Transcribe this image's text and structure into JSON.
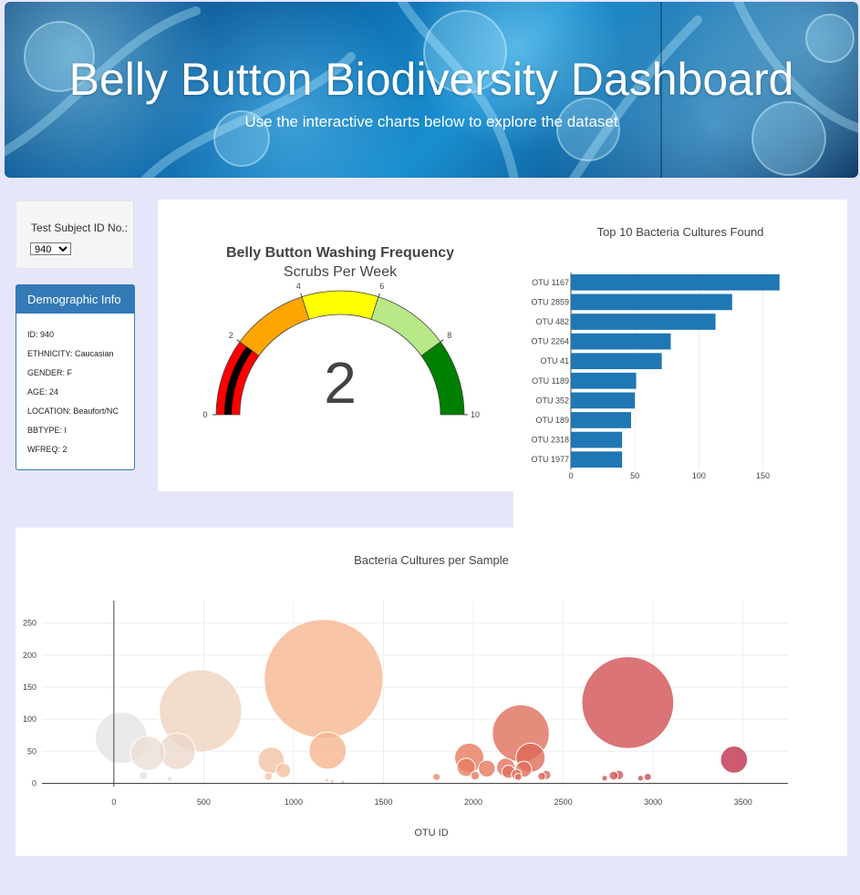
{
  "header": {
    "title": "Belly Button Biodiversity Dashboard",
    "subtitle": "Use the interactive charts below to explore the dataset"
  },
  "selector": {
    "label": "Test Subject ID No.:",
    "selected": "940"
  },
  "demographics": {
    "heading": "Demographic Info",
    "rows": [
      "ID: 940",
      "ETHNICITY: Caucasian",
      "GENDER: F",
      "AGE: 24",
      "LOCATION: Beaufort/NC",
      "BBTYPE: I",
      "WFREQ: 2"
    ]
  },
  "gauge": {
    "title": "Belly Button Washing Frequency",
    "subtitle": "Scrubs Per Week",
    "value": 2,
    "min": 0,
    "max": 10,
    "ticks": [
      "0",
      "2",
      "4",
      "6",
      "8",
      "10"
    ],
    "bands": [
      {
        "from": 0,
        "to": 2,
        "color": "#ff0000"
      },
      {
        "from": 2,
        "to": 4,
        "color": "#ffa500"
      },
      {
        "from": 4,
        "to": 6,
        "color": "#ffff00"
      },
      {
        "from": 6,
        "to": 8,
        "color": "#b8e986"
      },
      {
        "from": 8,
        "to": 10,
        "color": "#008000"
      }
    ],
    "bar_color": "#000000"
  },
  "chart_data": [
    {
      "type": "bar",
      "orientation": "horizontal",
      "title": "Top 10 Bacteria Cultures Found",
      "categories": [
        "OTU 1167",
        "OTU 2859",
        "OTU 482",
        "OTU 2264",
        "OTU 41",
        "OTU 1189",
        "OTU 352",
        "OTU 189",
        "OTU 2318",
        "OTU 1977"
      ],
      "values": [
        163,
        126,
        113,
        78,
        71,
        51,
        50,
        47,
        40,
        40
      ],
      "xticks": [
        0,
        50,
        100,
        150
      ],
      "xlim": [
        0,
        171
      ],
      "color": "#1f77b4"
    },
    {
      "type": "scatter",
      "title": "Bacteria Cultures per Sample",
      "xlabel": "OTU ID",
      "xticks": [
        0,
        500,
        1000,
        1500,
        2000,
        2500,
        3000,
        3500
      ],
      "yticks": [
        0,
        50,
        100,
        150,
        200,
        250
      ],
      "xlim": [
        -400,
        3750
      ],
      "ylim": [
        -5,
        285
      ],
      "points": [
        {
          "x": 41,
          "y": 71
        },
        {
          "x": 189,
          "y": 47
        },
        {
          "x": 352,
          "y": 50
        },
        {
          "x": 482,
          "y": 113
        },
        {
          "x": 165,
          "y": 12
        },
        {
          "x": 310,
          "y": 7
        },
        {
          "x": 875,
          "y": 36
        },
        {
          "x": 943,
          "y": 20
        },
        {
          "x": 860,
          "y": 11
        },
        {
          "x": 1167,
          "y": 163
        },
        {
          "x": 1189,
          "y": 51
        },
        {
          "x": 1185,
          "y": 5
        },
        {
          "x": 1215,
          "y": 3
        },
        {
          "x": 1275,
          "y": 2
        },
        {
          "x": 1795,
          "y": 10
        },
        {
          "x": 1977,
          "y": 40
        },
        {
          "x": 1960,
          "y": 25
        },
        {
          "x": 2010,
          "y": 12
        },
        {
          "x": 2075,
          "y": 23
        },
        {
          "x": 2180,
          "y": 25
        },
        {
          "x": 2195,
          "y": 18
        },
        {
          "x": 2240,
          "y": 14
        },
        {
          "x": 2250,
          "y": 10
        },
        {
          "x": 2264,
          "y": 78
        },
        {
          "x": 2280,
          "y": 22
        },
        {
          "x": 2318,
          "y": 40
        },
        {
          "x": 2380,
          "y": 11
        },
        {
          "x": 2405,
          "y": 13
        },
        {
          "x": 2730,
          "y": 8
        },
        {
          "x": 2780,
          "y": 12
        },
        {
          "x": 2810,
          "y": 13
        },
        {
          "x": 2859,
          "y": 126
        },
        {
          "x": 2930,
          "y": 8
        },
        {
          "x": 2970,
          "y": 10
        },
        {
          "x": 3450,
          "y": 37
        }
      ],
      "colorscale": "Earth"
    }
  ]
}
